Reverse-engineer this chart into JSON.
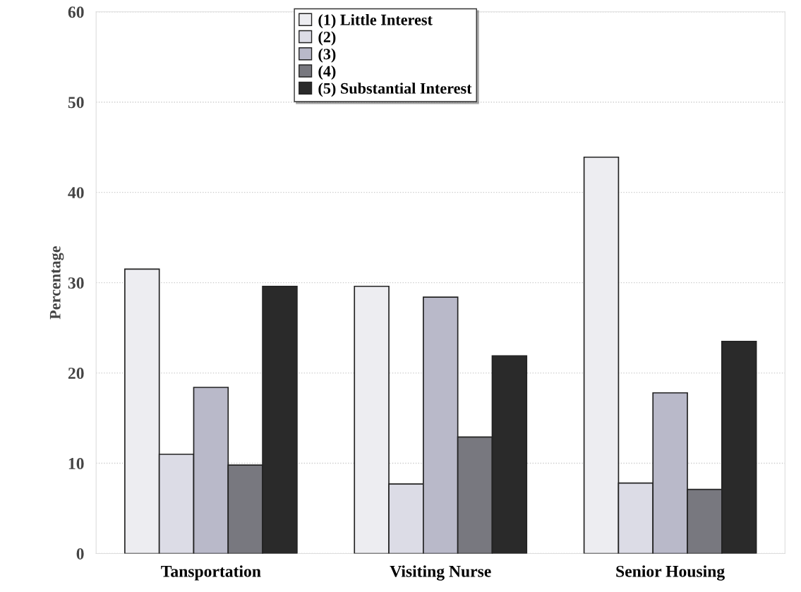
{
  "chart_data": {
    "type": "bar",
    "ylabel": "Percentage",
    "categories": [
      "Tansportation",
      "Visiting Nurse",
      "Senior Housing"
    ],
    "series": [
      {
        "name": "(1) Little Interest",
        "color": "#ededf1",
        "values": [
          31.5,
          29.6,
          43.9
        ]
      },
      {
        "name": "(2)",
        "color": "#dcdce6",
        "values": [
          11.0,
          7.7,
          7.8
        ]
      },
      {
        "name": "(3)",
        "color": "#b9b9c9",
        "values": [
          18.4,
          28.4,
          17.8
        ]
      },
      {
        "name": "(4)",
        "color": "#78787f",
        "values": [
          9.8,
          12.9,
          7.1
        ]
      },
      {
        "name": "(5) Substantial Interest",
        "color": "#2a2a2a",
        "values": [
          29.6,
          21.9,
          23.5
        ]
      }
    ],
    "ylim": [
      0,
      60
    ],
    "yticks": [
      0,
      10,
      20,
      30,
      40,
      50,
      60
    ],
    "grid": "y",
    "legend": "top"
  }
}
